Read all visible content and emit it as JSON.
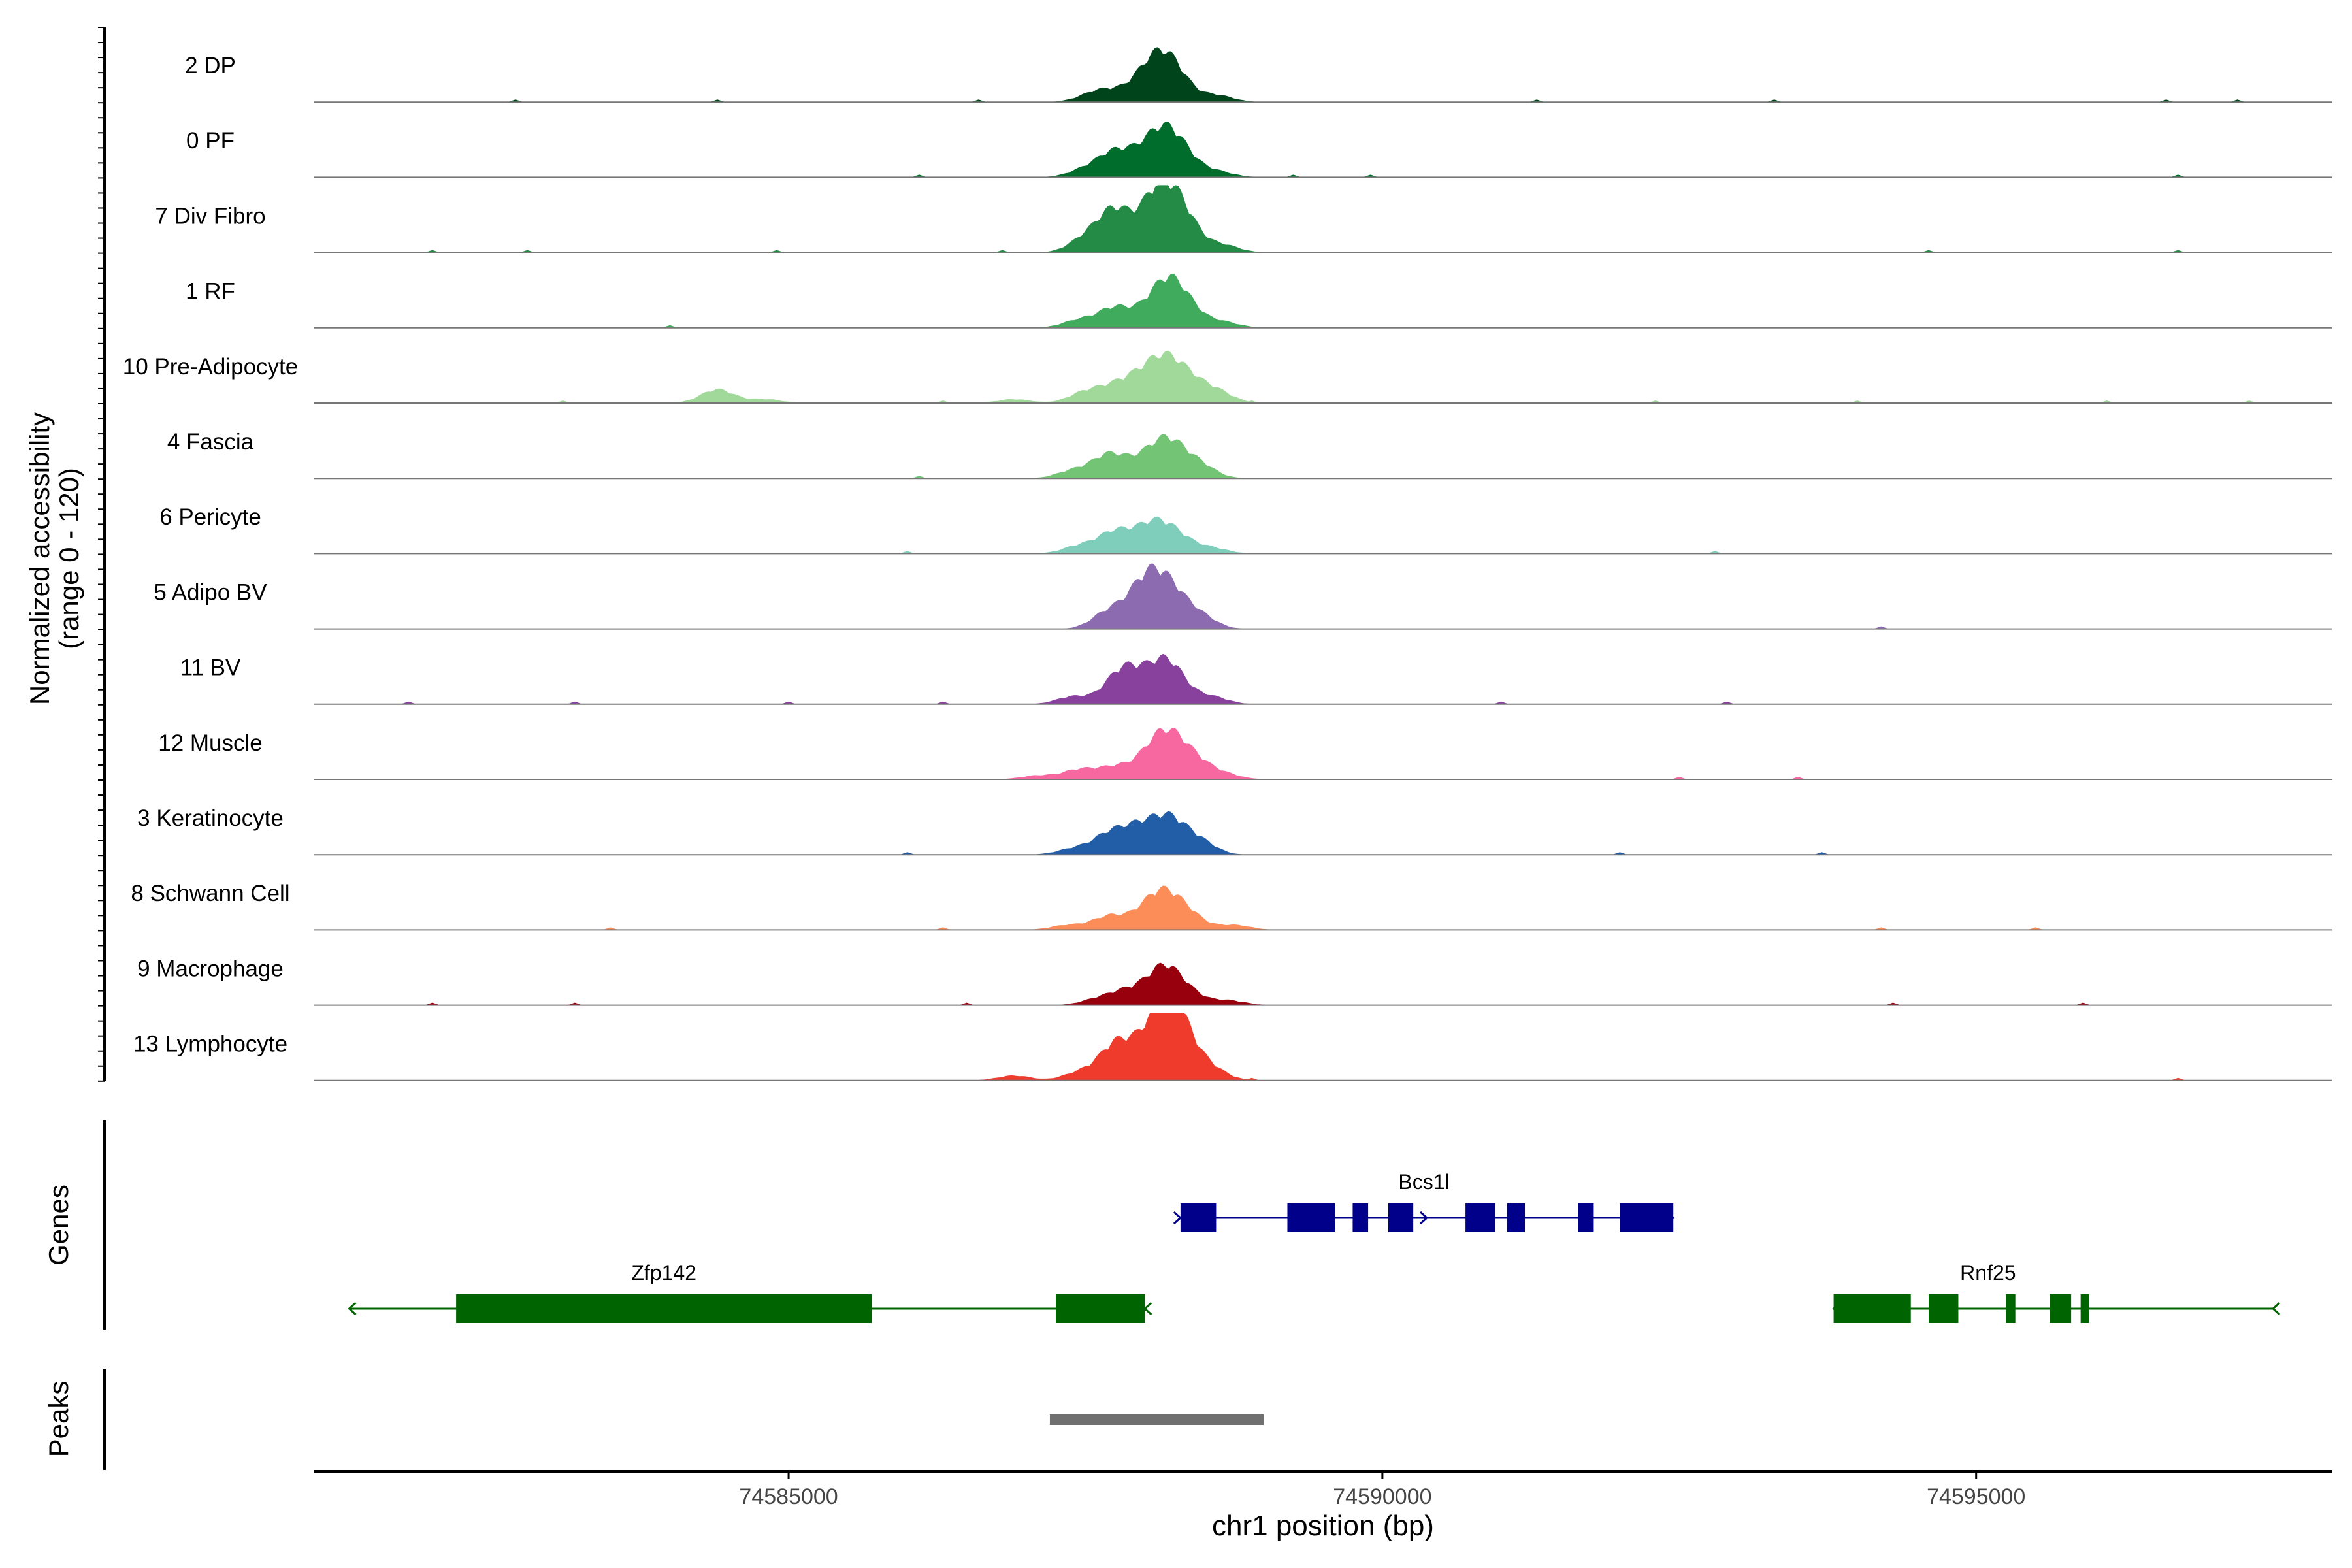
{
  "chart_data": {
    "type": "area",
    "title": "",
    "ylabel_line1": "Normalized accessibility",
    "ylabel_line2": "(range 0 - 120)",
    "y_range": [
      0,
      120
    ],
    "xlabel": "chr1 position (bp)",
    "xlim": [
      74581000,
      74598000
    ],
    "xticks": [
      74585000,
      74590000,
      74595000
    ],
    "xtick_labels": [
      "74585000",
      "74590000",
      "74595000"
    ],
    "tracks": [
      {
        "label": "2 DP",
        "color": "#00441b",
        "peaks": [
          [
            74588000,
            22
          ],
          [
            74588150,
            26
          ],
          [
            74588250,
            20
          ],
          [
            74587700,
            9
          ],
          [
            74587550,
            6
          ],
          [
            74588600,
            7
          ]
        ],
        "noise": [
          74582700,
          74584400,
          74586600,
          74591300,
          74593300,
          74596600,
          74597200
        ]
      },
      {
        "label": "0 PF",
        "color": "#006d2c",
        "peaks": [
          [
            74587750,
            24
          ],
          [
            74588000,
            16
          ],
          [
            74588150,
            32
          ],
          [
            74588300,
            22
          ],
          [
            74587500,
            8
          ],
          [
            74588600,
            6
          ]
        ],
        "noise": [
          74586100,
          74589250,
          74589900,
          74596700
        ]
      },
      {
        "label": "7 Div Fibro",
        "color": "#238b45",
        "peaks": [
          [
            74587750,
            42
          ],
          [
            74588100,
            56
          ],
          [
            74588300,
            40
          ],
          [
            74587500,
            14
          ],
          [
            74588650,
            8
          ]
        ],
        "noise": [
          74582000,
          74582800,
          74584900,
          74586800,
          74594600,
          74596700
        ]
      },
      {
        "label": "1 RF",
        "color": "#41ab5d",
        "peaks": [
          [
            74587750,
            20
          ],
          [
            74588050,
            14
          ],
          [
            74588200,
            36
          ],
          [
            74588350,
            16
          ],
          [
            74587450,
            8
          ],
          [
            74588650,
            6
          ]
        ],
        "noise": [
          74584000,
          74588000
        ]
      },
      {
        "label": "10 Pre-Adipocyte",
        "color": "#a1d99b",
        "peaks": [
          [
            74584400,
            14
          ],
          [
            74587500,
            11
          ],
          [
            74587750,
            14
          ],
          [
            74587950,
            18
          ],
          [
            74588150,
            36
          ],
          [
            74588350,
            22
          ],
          [
            74588600,
            12
          ],
          [
            74584800,
            4
          ],
          [
            74586900,
            4
          ]
        ],
        "noise": [
          74583100,
          74586300,
          74588900,
          74592300,
          74594000,
          74596100,
          74597300
        ]
      },
      {
        "label": "4 Fascia",
        "color": "#74c476",
        "peaks": [
          [
            74587700,
            24
          ],
          [
            74588000,
            16
          ],
          [
            74588200,
            34
          ],
          [
            74588450,
            14
          ],
          [
            74587400,
            8
          ]
        ],
        "noise": [
          74586100
        ]
      },
      {
        "label": "6 Pericyte",
        "color": "#7fcdbb",
        "peaks": [
          [
            74587750,
            22
          ],
          [
            74588050,
            26
          ],
          [
            74588250,
            18
          ],
          [
            74587450,
            8
          ],
          [
            74588550,
            6
          ]
        ],
        "noise": [
          74586000,
          74592800
        ]
      },
      {
        "label": "5 Adipo BV",
        "color": "#8c6bb1",
        "peaks": [
          [
            74587700,
            18
          ],
          [
            74588000,
            44
          ],
          [
            74588200,
            36
          ],
          [
            74588450,
            14
          ]
        ],
        "noise": [
          74594200
        ]
      },
      {
        "label": "11 BV",
        "color": "#88419d",
        "peaks": [
          [
            74587800,
            32
          ],
          [
            74588000,
            16
          ],
          [
            74588200,
            40
          ],
          [
            74587400,
            8
          ],
          [
            74588550,
            8
          ]
        ],
        "noise": [
          74581800,
          74583200,
          74585000,
          74586300,
          74591000,
          74592900
        ]
      },
      {
        "label": "12 Muscle",
        "color": "#f768a1",
        "peaks": [
          [
            74587450,
            10
          ],
          [
            74587750,
            12
          ],
          [
            74588050,
            20
          ],
          [
            74588200,
            34
          ],
          [
            74588400,
            18
          ],
          [
            74588650,
            6
          ],
          [
            74587100,
            4
          ]
        ],
        "noise": [
          74592500,
          74593500
        ]
      },
      {
        "label": "3 Keratinocyte",
        "color": "#225ea8",
        "peaks": [
          [
            74587700,
            20
          ],
          [
            74587950,
            24
          ],
          [
            74588200,
            34
          ],
          [
            74588450,
            14
          ],
          [
            74587400,
            6
          ]
        ],
        "noise": [
          74586000,
          74592000,
          74593700
        ]
      },
      {
        "label": "8 Schwann Cell",
        "color": "#fc8d59",
        "peaks": [
          [
            74587700,
            14
          ],
          [
            74588000,
            12
          ],
          [
            74588150,
            30
          ],
          [
            74588350,
            16
          ],
          [
            74588750,
            5
          ],
          [
            74587350,
            5
          ]
        ],
        "noise": [
          74583500,
          74586300,
          74594200,
          74595500
        ]
      },
      {
        "label": "9 Macrophage",
        "color": "#99000d",
        "peaks": [
          [
            74587850,
            14
          ],
          [
            74588150,
            36
          ],
          [
            74588350,
            12
          ],
          [
            74587600,
            6
          ],
          [
            74588700,
            5
          ]
        ],
        "noise": [
          74582000,
          74583200,
          74586500,
          74594300,
          74595900
        ]
      },
      {
        "label": "13 Lymphocyte",
        "color": "#ef3b2c",
        "peaks": [
          [
            74587750,
            34
          ],
          [
            74587950,
            16
          ],
          [
            74588150,
            60
          ],
          [
            74588300,
            40
          ],
          [
            74588550,
            12
          ],
          [
            74587450,
            8
          ],
          [
            74586900,
            5
          ]
        ],
        "noise": [
          74588900,
          74596700
        ]
      }
    ],
    "genes": [
      {
        "name": "Bcs1l",
        "color": "#00008b",
        "strand": "+",
        "row": 0,
        "start": 74588300,
        "end": 74592450,
        "exons": [
          [
            74588300,
            74588600
          ],
          [
            74589200,
            74589600
          ],
          [
            74589750,
            74589880
          ],
          [
            74590050,
            74590260
          ],
          [
            74590700,
            74590950
          ],
          [
            74591050,
            74591200
          ],
          [
            74591650,
            74591780
          ],
          [
            74592000,
            74592450
          ]
        ]
      },
      {
        "name": "Zfp142",
        "color": "#006400",
        "strand": "-",
        "row": 1,
        "start": 74581300,
        "end": 74588000,
        "exons": [
          [
            74582200,
            74585700
          ],
          [
            74587250,
            74588000
          ]
        ]
      },
      {
        "name": "Rnf25",
        "color": "#006400",
        "strand": "-",
        "row": 1,
        "start": 74593800,
        "end": 74597500,
        "exons": [
          [
            74593800,
            74594450
          ],
          [
            74594600,
            74594850
          ],
          [
            74595250,
            74595330
          ],
          [
            74595620,
            74595800
          ],
          [
            74595880,
            74595950
          ]
        ]
      }
    ],
    "peaks_track": [
      [
        74587200,
        74589000
      ]
    ],
    "panel_labels": {
      "genes": "Genes",
      "peaks": "Peaks"
    },
    "grid": false,
    "legend": "none"
  }
}
